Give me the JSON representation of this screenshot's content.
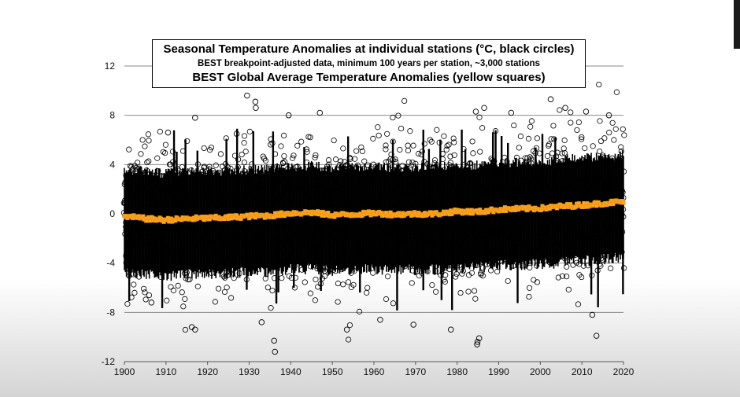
{
  "chart_data": {
    "type": "scatter",
    "title": "Seasonal Temperature Anomalies at individual stations (°C, black circles)",
    "subtitle": "BEST breakpoint-adjusted data, minimum 100 years per station, ~3,000 stations",
    "title2": "BEST Global Average Temperature Anomalies (yellow squares)",
    "xlabel": "",
    "ylabel": "",
    "xlim": [
      1900,
      2020
    ],
    "ylim": [
      -12,
      12
    ],
    "grid": "horizontal",
    "x_ticks": [
      "1900",
      "1910",
      "1920",
      "1930",
      "1940",
      "1950",
      "1960",
      "1970",
      "1980",
      "1990",
      "2000",
      "2010",
      "2020"
    ],
    "y_ticks": [
      "12",
      "8",
      "4",
      "0",
      "-4",
      "-8",
      "-12"
    ],
    "series": [
      {
        "kind": "station-anomalies",
        "marker": "open-circle",
        "color": "#000000",
        "typical_range": [
          -4.5,
          4.0
        ],
        "outliers": [
          [
            1917.0,
            7.8
          ],
          [
            1929.5,
            9.6
          ],
          [
            1931.5,
            9.1
          ],
          [
            1931.6,
            8.6
          ],
          [
            1939.5,
            8.0
          ],
          [
            1947.0,
            8.2
          ],
          [
            1984.5,
            8.3
          ],
          [
            1986.5,
            8.6
          ],
          [
            1993.0,
            8.2
          ],
          [
            2002.5,
            9.3
          ],
          [
            2006.0,
            8.6
          ],
          [
            2011.0,
            8.3
          ],
          [
            2016.5,
            8.0
          ],
          [
            1910.5,
            6.6
          ],
          [
            1927.0,
            6.5
          ],
          [
            1936.0,
            -10.3
          ],
          [
            1936.2,
            -11.2
          ],
          [
            1933.0,
            -8.8
          ],
          [
            1917.0,
            -9.4
          ],
          [
            1916.2,
            -9.2
          ],
          [
            1984.8,
            -10.6
          ],
          [
            1984.9,
            -10.4
          ],
          [
            1985.3,
            -10.1
          ],
          [
            1978.5,
            -9.4
          ],
          [
            1953.5,
            -9.4
          ],
          [
            2012.5,
            -8.2
          ],
          [
            2013.5,
            -9.9
          ],
          [
            1969.5,
            -9.0
          ],
          [
            1961.5,
            -8.6
          ],
          [
            1906.5,
            -7.2
          ]
        ]
      },
      {
        "kind": "global-average",
        "marker": "square",
        "color": "#ffa726",
        "points": [
          [
            1900,
            -0.2
          ],
          [
            1905,
            -0.4
          ],
          [
            1910,
            -0.5
          ],
          [
            1915,
            -0.4
          ],
          [
            1920,
            -0.35
          ],
          [
            1925,
            -0.3
          ],
          [
            1930,
            -0.2
          ],
          [
            1935,
            -0.15
          ],
          [
            1940,
            0.05
          ],
          [
            1945,
            0.1
          ],
          [
            1950,
            -0.1
          ],
          [
            1955,
            -0.05
          ],
          [
            1960,
            0.05
          ],
          [
            1965,
            -0.05
          ],
          [
            1970,
            0.0
          ],
          [
            1975,
            0.0
          ],
          [
            1980,
            0.2
          ],
          [
            1985,
            0.15
          ],
          [
            1990,
            0.35
          ],
          [
            1995,
            0.4
          ],
          [
            2000,
            0.45
          ],
          [
            2005,
            0.6
          ],
          [
            2010,
            0.7
          ],
          [
            2015,
            0.85
          ],
          [
            2020,
            1.0
          ]
        ]
      }
    ]
  }
}
